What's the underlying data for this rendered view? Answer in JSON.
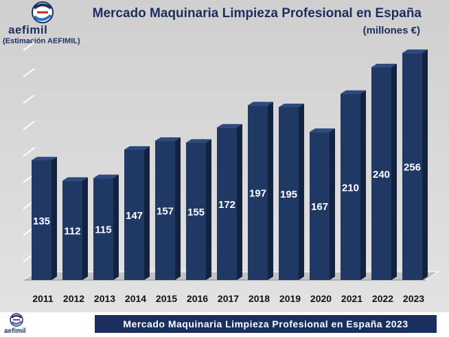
{
  "header": {
    "brand": "aefimil",
    "estimation_note": "(Estimación AEFIMIL)",
    "title": "Mercado Maquinaria Limpieza Profesional en España",
    "subtitle": "(millones €)"
  },
  "footer": {
    "brand": "aefimil",
    "banner": "Mercado Maquinaria Limpieza Profesional en España 2023"
  },
  "colors": {
    "bar_front": "#203864",
    "bar_side": "#13223f",
    "bar_top": "#2c4a80",
    "brand_navy": "#1a2f5e"
  },
  "chart_data": {
    "type": "bar",
    "title": "Mercado Maquinaria Limpieza Profesional en España",
    "subtitle": "(millones €)",
    "categories": [
      "2011",
      "2012",
      "2013",
      "2014",
      "2015",
      "2016",
      "2017",
      "2018",
      "2019",
      "2020",
      "2021",
      "2022",
      "2023"
    ],
    "values": [
      135,
      112,
      115,
      147,
      157,
      155,
      172,
      197,
      195,
      167,
      210,
      240,
      256
    ],
    "xlabel": "",
    "ylabel": "",
    "ylim": [
      0,
      260
    ],
    "grid": true,
    "legend": "none"
  }
}
